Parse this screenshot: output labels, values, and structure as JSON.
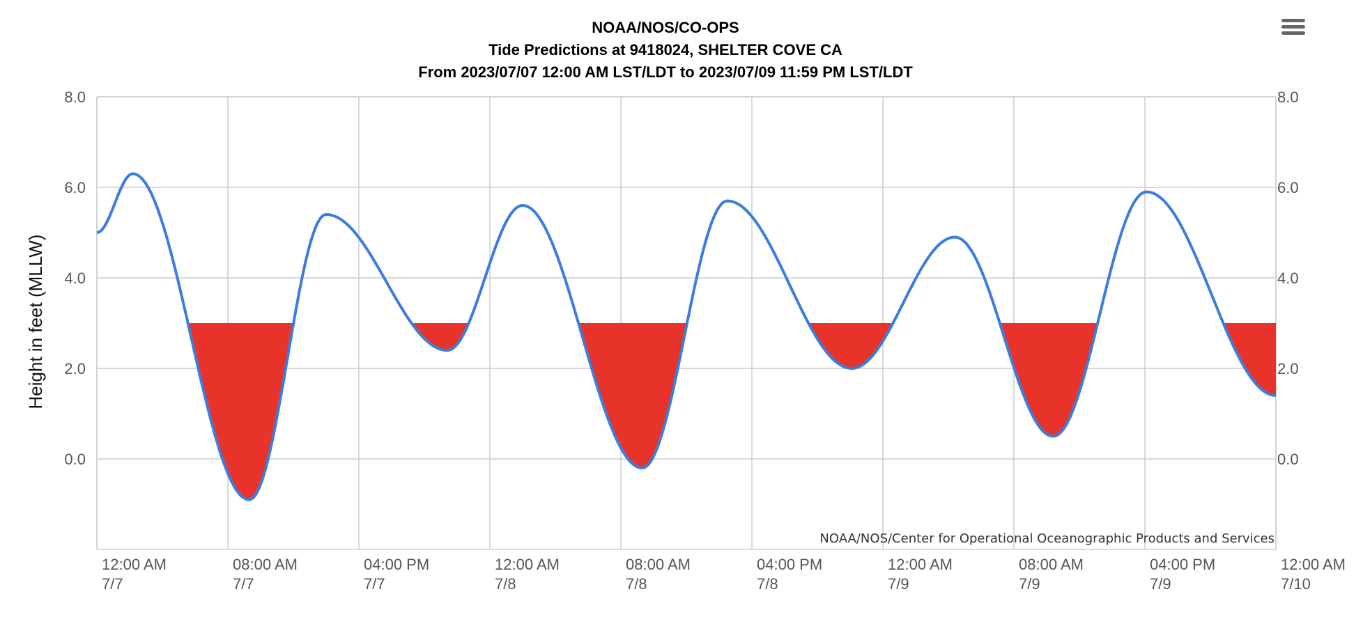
{
  "chart_data": {
    "type": "area",
    "title_lines": [
      "NOAA/NOS/CO-OPS",
      "Tide Predictions at 9418024, SHELTER COVE CA",
      "From 2023/07/07 12:00 AM LST/LDT to 2023/07/09 11:59 PM LST/LDT"
    ],
    "ylabel": "Height in feet (MLLW)",
    "ylim": [
      -2.0,
      8.0
    ],
    "y_ticks": [
      "8.0",
      "6.0",
      "4.0",
      "2.0",
      "0.0"
    ],
    "y_tick_values": [
      8,
      6,
      4,
      2,
      0
    ],
    "x_range_hours": [
      0,
      72
    ],
    "x_tick_hours": [
      0,
      8,
      16,
      24,
      32,
      40,
      48,
      56,
      64,
      72
    ],
    "x_ticks": [
      [
        "12:00 AM",
        "7/7"
      ],
      [
        "08:00 AM",
        "7/7"
      ],
      [
        "04:00 PM",
        "7/7"
      ],
      [
        "12:00 AM",
        "7/8"
      ],
      [
        "08:00 AM",
        "7/8"
      ],
      [
        "04:00 PM",
        "7/8"
      ],
      [
        "12:00 AM",
        "7/9"
      ],
      [
        "08:00 AM",
        "7/9"
      ],
      [
        "04:00 PM",
        "7/9"
      ],
      [
        "12:00 AM",
        "7/10"
      ]
    ],
    "threshold": 3.0,
    "series": [
      {
        "extrema_hours": [
          0.0,
          2.2,
          9.3,
          14.0,
          21.4,
          26.0,
          33.3,
          38.5,
          46.1,
          52.4,
          58.4,
          64.1,
          72.0
        ],
        "extrema_heights": [
          5.0,
          6.3,
          -0.9,
          5.4,
          2.4,
          5.6,
          -0.2,
          5.7,
          2.0,
          4.9,
          0.5,
          5.9,
          1.4
        ]
      }
    ],
    "colors": {
      "line": "#3b7ddd",
      "fill": "#e8332a",
      "grid": "#c8cdd3",
      "axis_text": "#555555"
    },
    "credit": "NOAA/NOS/Center for Operational Oceanographic Products and Services",
    "grid": true,
    "legend": "none"
  }
}
